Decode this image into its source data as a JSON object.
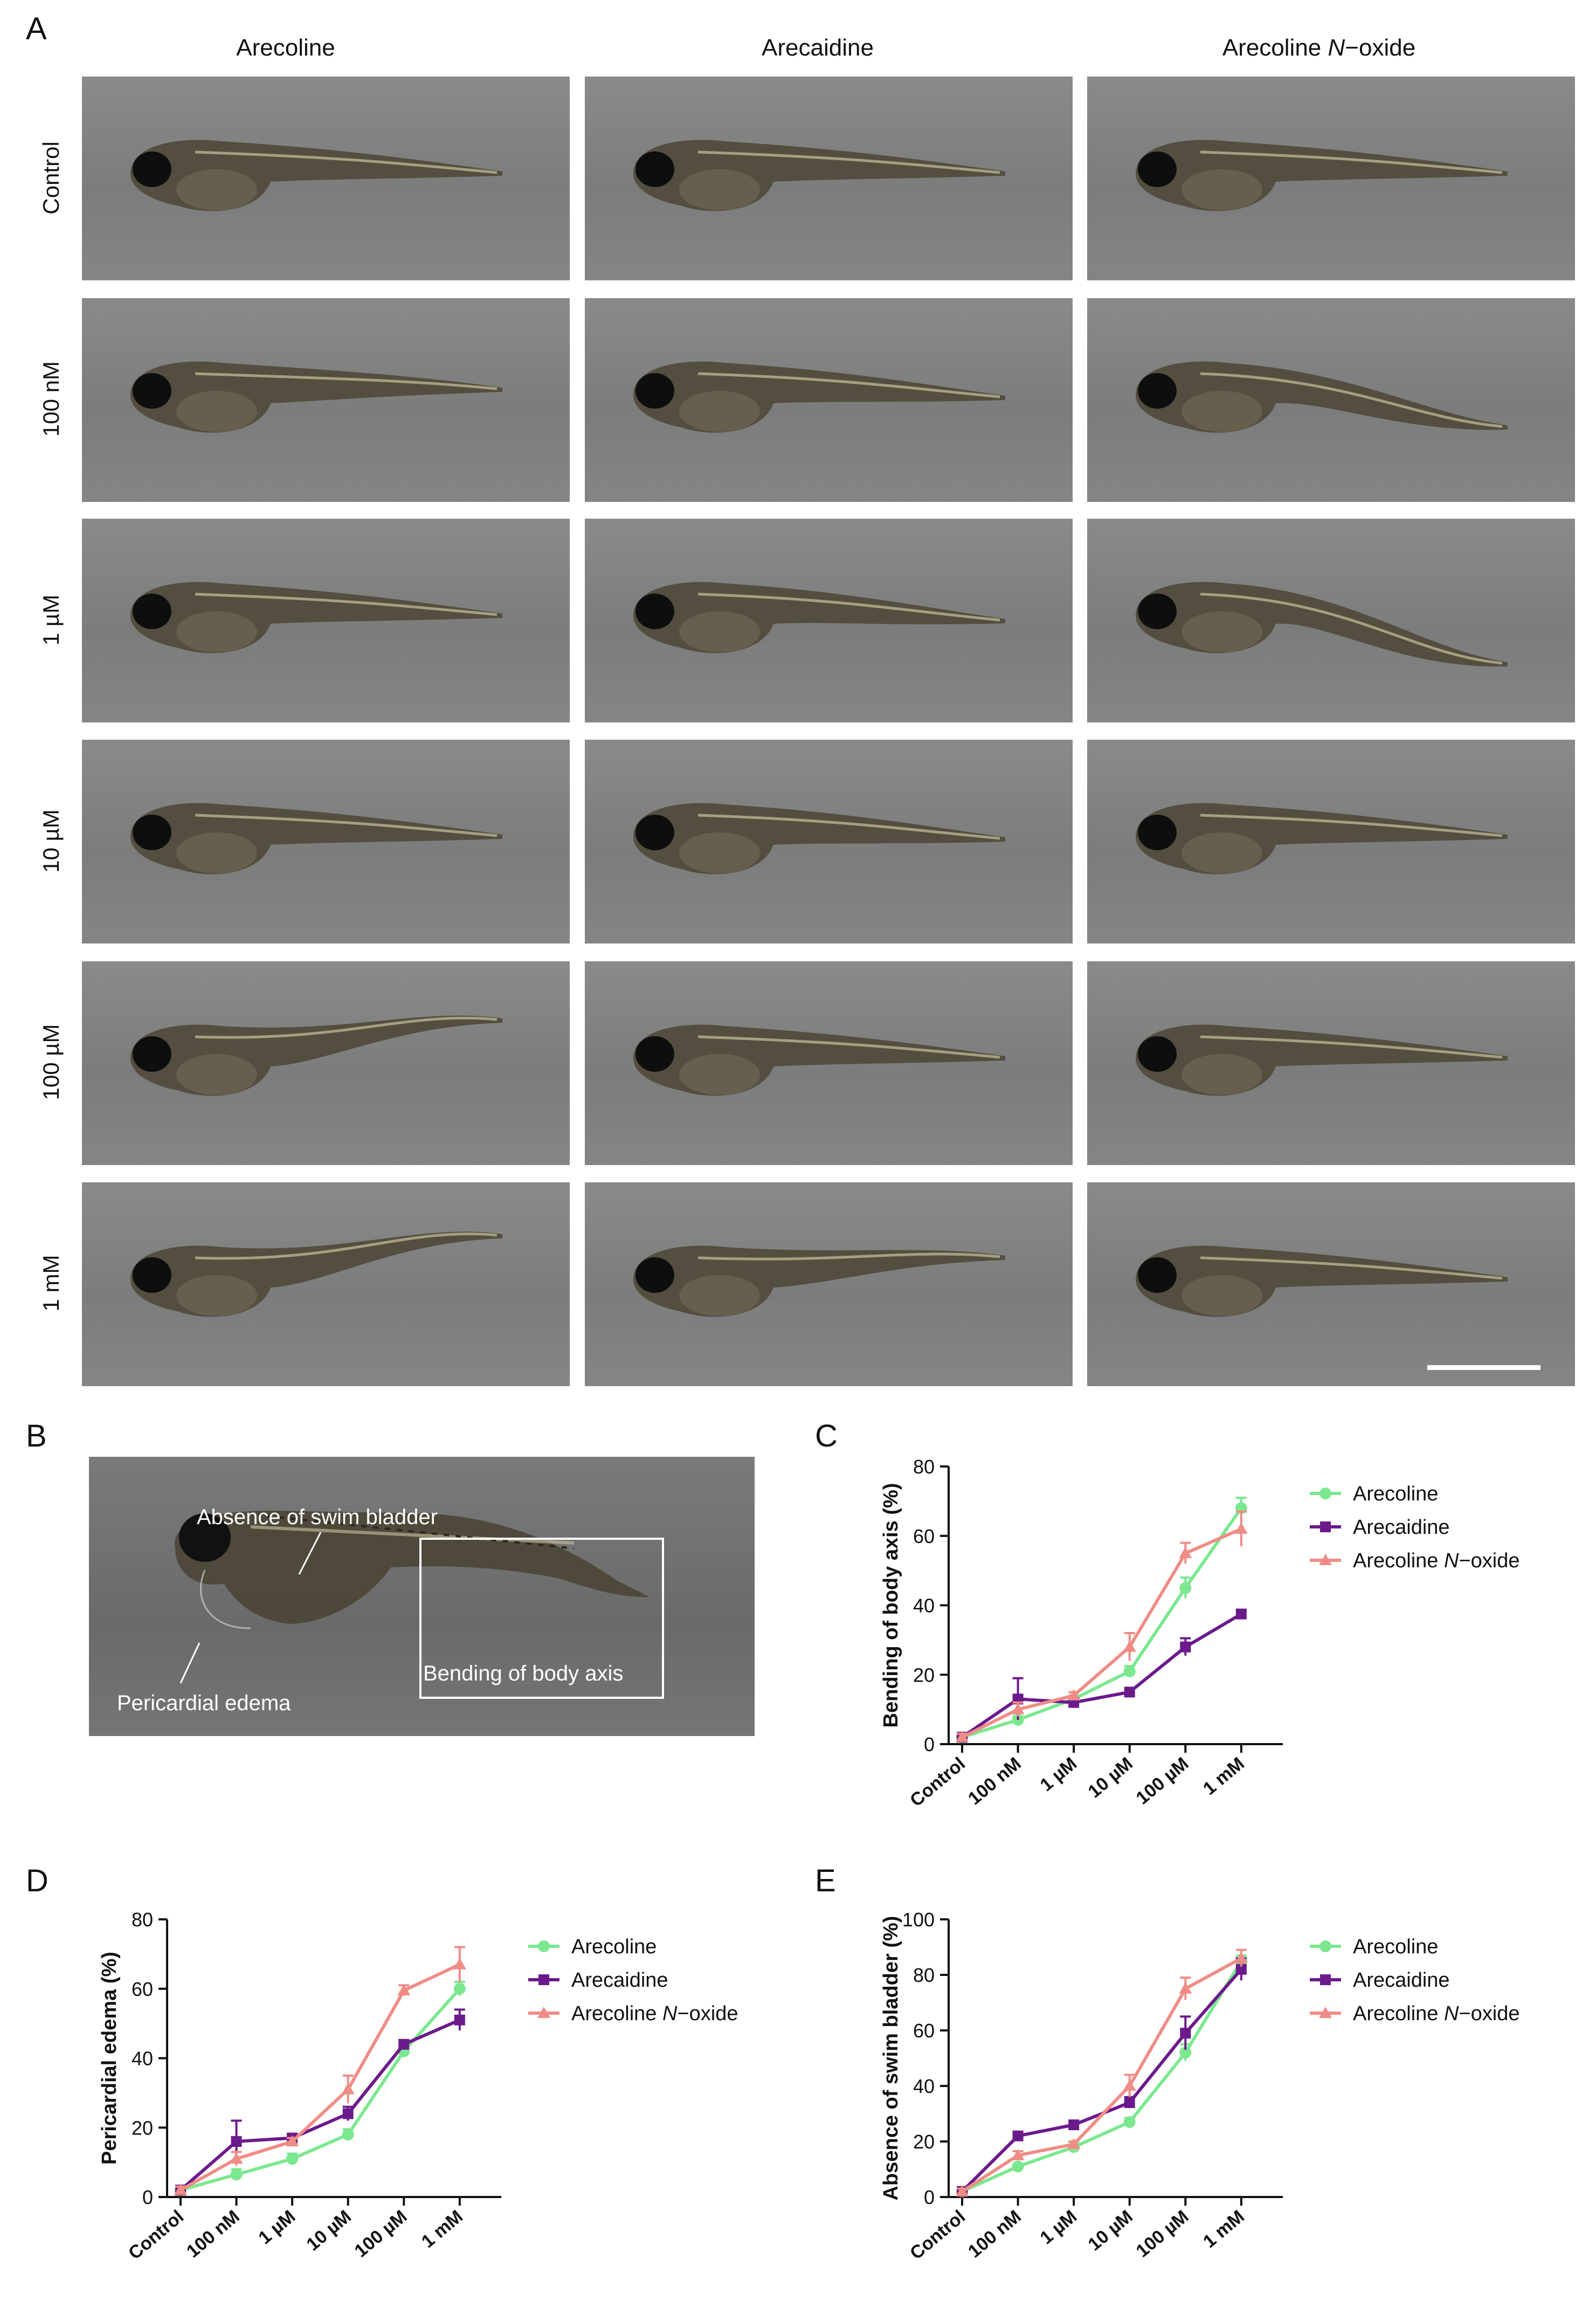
{
  "panel_letters": {
    "a": "A",
    "b": "B",
    "c": "C",
    "d": "D",
    "e": "E"
  },
  "panel_a": {
    "columns": [
      "Arecoline",
      "Arecaidine",
      "Arecoline N−oxide"
    ],
    "rows": [
      "Control",
      "100 nM",
      "1 µM",
      "10 µM",
      "100 µM",
      "1 mM"
    ]
  },
  "panel_b": {
    "annotations": {
      "swim_bladder": "Absence of swim bladder",
      "pericardial": "Pericardial edema",
      "bending": "Bending of body axis"
    }
  },
  "colors": {
    "arecoline": "#7be88f",
    "arecaidine": "#6b1a8c",
    "noxide": "#f08c86"
  },
  "chart_data": [
    {
      "id": "C",
      "type": "line",
      "ylabel": "Bending of body axis (%)",
      "xlabel": "",
      "categories": [
        "Control",
        "100 nM",
        "1 µM",
        "10 µM",
        "100 µM",
        "1 mM"
      ],
      "ylim": [
        0,
        80
      ],
      "yticks": [
        0,
        20,
        40,
        60,
        80
      ],
      "legend": "top-right",
      "series": [
        {
          "name": "Arecoline",
          "marker": "circle",
          "values": [
            2,
            7,
            13,
            21,
            45,
            68
          ],
          "errors": [
            1,
            1,
            1,
            1.5,
            3,
            3
          ]
        },
        {
          "name": "Arecaidine",
          "marker": "square",
          "values": [
            2,
            13,
            12,
            15,
            28,
            37.5
          ],
          "errors": [
            1,
            6,
            1,
            1,
            2.5,
            1
          ]
        },
        {
          "name": "Arecoline N−oxide",
          "marker": "triangle",
          "values": [
            2,
            10,
            14,
            28,
            55,
            62
          ],
          "errors": [
            1,
            2,
            1,
            4,
            3,
            5
          ]
        }
      ]
    },
    {
      "id": "D",
      "type": "line",
      "ylabel": "Pericardial edema (%)",
      "xlabel": "",
      "categories": [
        "Control",
        "100 nM",
        "1 µM",
        "10 µM",
        "100 µM",
        "1 mM"
      ],
      "ylim": [
        0,
        80
      ],
      "yticks": [
        0,
        20,
        40,
        60,
        80
      ],
      "legend": "top-right",
      "series": [
        {
          "name": "Arecoline",
          "marker": "circle",
          "values": [
            2,
            6.5,
            11,
            18,
            42,
            60
          ],
          "errors": [
            1,
            1.5,
            1.5,
            1.5,
            1,
            2
          ]
        },
        {
          "name": "Arecaidine",
          "marker": "square",
          "values": [
            2,
            16,
            17,
            24,
            44,
            51
          ],
          "errors": [
            1,
            6,
            1,
            2,
            1,
            3
          ]
        },
        {
          "name": "Arecoline N−oxide",
          "marker": "triangle",
          "values": [
            2,
            11,
            16,
            31,
            59.5,
            67
          ],
          "errors": [
            1,
            2,
            1,
            4,
            1.5,
            5
          ]
        }
      ]
    },
    {
      "id": "E",
      "type": "line",
      "ylabel": "Absence of swim bladder (%)",
      "xlabel": "",
      "categories": [
        "Control",
        "100 nM",
        "1 µM",
        "10 µM",
        "100 µM",
        "1 mM"
      ],
      "ylim": [
        0,
        100
      ],
      "yticks": [
        0,
        20,
        40,
        60,
        80,
        100
      ],
      "legend": "top-right",
      "series": [
        {
          "name": "Arecoline",
          "marker": "circle",
          "values": [
            2,
            11,
            18,
            27,
            52,
            85
          ],
          "errors": [
            1,
            1,
            1,
            1.5,
            3,
            2
          ]
        },
        {
          "name": "Arecaidine",
          "marker": "square",
          "values": [
            2,
            22,
            26,
            34,
            59,
            82
          ],
          "errors": [
            1,
            1,
            1,
            2,
            6,
            4
          ]
        },
        {
          "name": "Arecoline N−oxide",
          "marker": "triangle",
          "values": [
            2,
            15,
            19,
            40,
            75,
            86
          ],
          "errors": [
            1,
            1.5,
            1,
            4,
            4,
            3
          ]
        }
      ]
    }
  ]
}
